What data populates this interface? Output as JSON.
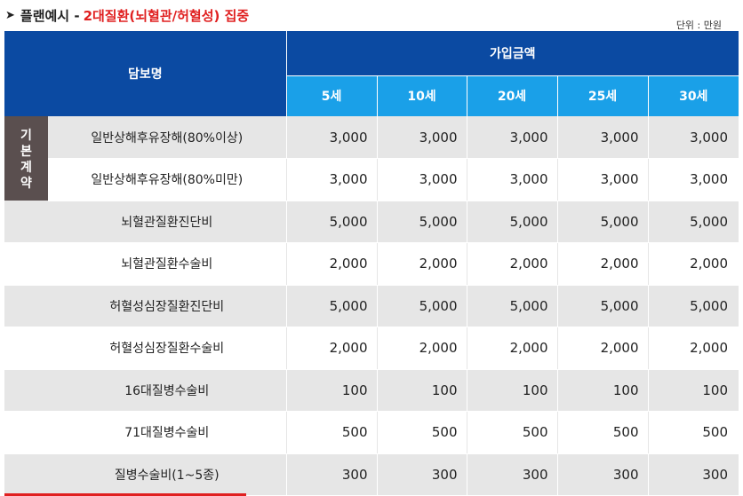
{
  "header": {
    "arrow": "➤",
    "title_black": "플랜예시 -",
    "title_red": "2대질환(뇌혈관/허혈성) 집중",
    "unit": "단위 : 만원"
  },
  "table": {
    "col_name": "담보명",
    "col_amount": "가입금액",
    "ages": [
      "5세",
      "10세",
      "20세",
      "25세",
      "30세"
    ],
    "side_label_lines": [
      "기",
      "본",
      "계",
      "약"
    ],
    "rows": [
      {
        "name": "일반상해후유장해(80%이상)",
        "values": [
          "3,000",
          "3,000",
          "3,000",
          "3,000",
          "3,000"
        ]
      },
      {
        "name": "일반상해후유장해(80%미만)",
        "values": [
          "3,000",
          "3,000",
          "3,000",
          "3,000",
          "3,000"
        ]
      },
      {
        "name": "뇌혈관질환진단비",
        "values": [
          "5,000",
          "5,000",
          "5,000",
          "5,000",
          "5,000"
        ]
      },
      {
        "name": "뇌혈관질환수술비",
        "values": [
          "2,000",
          "2,000",
          "2,000",
          "2,000",
          "2,000"
        ]
      },
      {
        "name": "허혈성심장질환진단비",
        "values": [
          "5,000",
          "5,000",
          "5,000",
          "5,000",
          "5,000"
        ]
      },
      {
        "name": "허혈성심장질환수술비",
        "values": [
          "2,000",
          "2,000",
          "2,000",
          "2,000",
          "2,000"
        ]
      },
      {
        "name": "16대질병수술비",
        "values": [
          "100",
          "100",
          "100",
          "100",
          "100"
        ]
      },
      {
        "name": "71대질병수술비",
        "values": [
          "500",
          "500",
          "500",
          "500",
          "500"
        ]
      },
      {
        "name": "질병수술비(1~5종)",
        "values": [
          "300",
          "300",
          "300",
          "300",
          "300"
        ]
      }
    ]
  },
  "colors": {
    "header_dark_blue": "#0b4aa2",
    "header_light_blue": "#1aa0e8",
    "accent_red": "#e02020",
    "side_brown": "#5a4f4f",
    "row_gray": "#e6e6e6"
  }
}
